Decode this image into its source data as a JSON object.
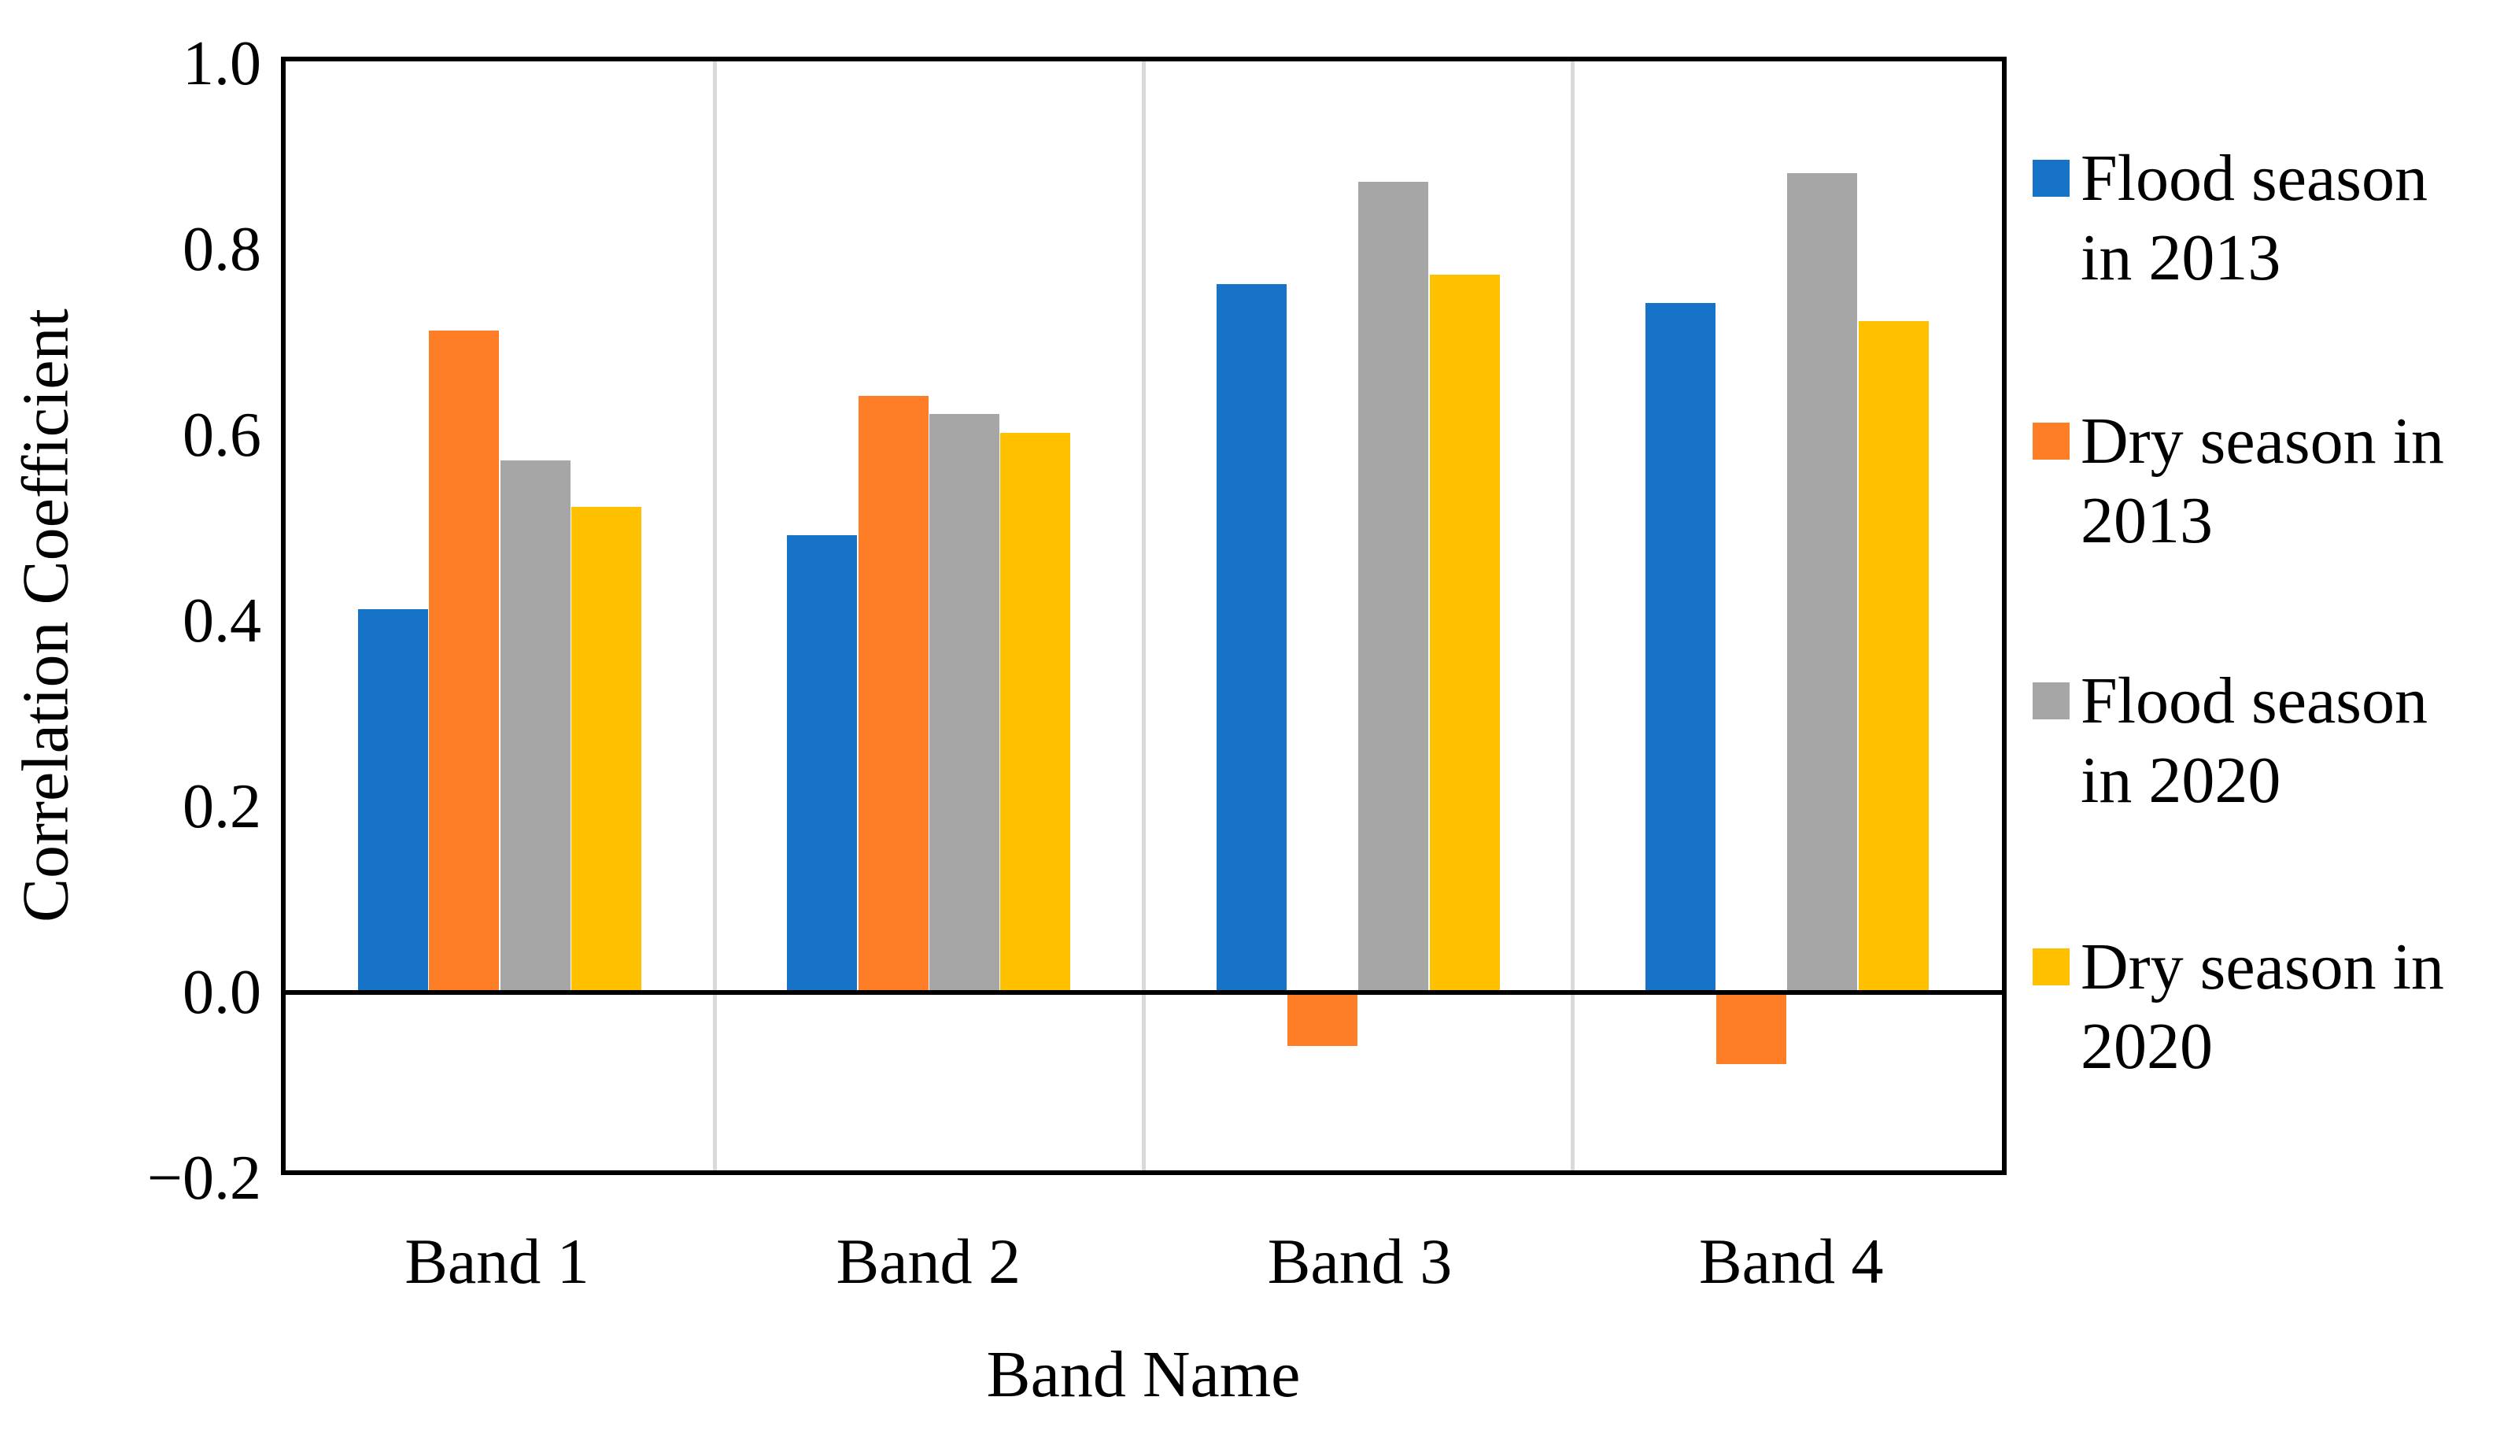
{
  "chart_data": {
    "type": "bar",
    "title": "",
    "xlabel": "Band Name",
    "ylabel": "Correlation Coefficient",
    "categories": [
      "Band 1",
      "Band 2",
      "Band 3",
      "Band 4"
    ],
    "series": [
      {
        "name": "Flood season in 2013",
        "lines": [
          "Flood season",
          "in 2013"
        ],
        "color": "#1773C8",
        "values": [
          0.41,
          0.49,
          0.76,
          0.74
        ]
      },
      {
        "name": "Dry season in 2013",
        "lines": [
          "Dry season in",
          "2013"
        ],
        "color": "#FD7E26",
        "values": [
          0.71,
          0.64,
          -0.06,
          -0.08
        ]
      },
      {
        "name": "Flood season in 2020",
        "lines": [
          "Flood season",
          "in 2020"
        ],
        "color": "#A6A6A6",
        "values": [
          0.57,
          0.62,
          0.87,
          0.88
        ]
      },
      {
        "name": "Dry season in 2020",
        "lines": [
          "Dry season in",
          "2020"
        ],
        "color": "#FFC000",
        "values": [
          0.52,
          0.6,
          0.77,
          0.72
        ]
      }
    ],
    "ylim": [
      -0.2,
      1.0
    ],
    "ytick_step": 0.2,
    "ytick_labels": [
      "1.0",
      "0.8",
      "0.6",
      "0.4",
      "0.2",
      "0.0",
      "−0.2"
    ],
    "ytick_values": [
      1.0,
      0.8,
      0.6,
      0.4,
      0.2,
      0.0,
      -0.2
    ],
    "grid": "vertical category separator lines only",
    "gridline_color": "#D9D9D9",
    "axis_color": "#000000",
    "background_color": "#FFFFFF",
    "legend_position": "right"
  }
}
